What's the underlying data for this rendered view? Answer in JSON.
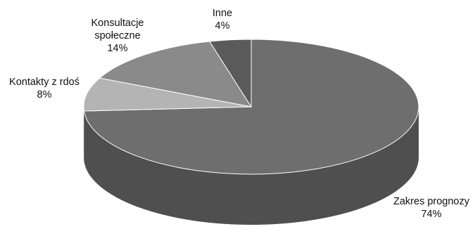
{
  "chart_data": {
    "type": "pie",
    "style": "3d",
    "slices": [
      {
        "label_lines": [
          "Zakres prognozy"
        ],
        "value": 74,
        "value_label": "74%",
        "color": "#6e6e6e"
      },
      {
        "label_lines": [
          "Kontakty z rdoś"
        ],
        "value": 8,
        "value_label": "8%",
        "color": "#b4b4b4"
      },
      {
        "label_lines": [
          "Konsultacje",
          "społeczne"
        ],
        "value": 14,
        "value_label": "14%",
        "color": "#8a8a8a"
      },
      {
        "label_lines": [
          "Inne"
        ],
        "value": 4,
        "value_label": "4%",
        "color": "#5a5a5a"
      }
    ]
  }
}
